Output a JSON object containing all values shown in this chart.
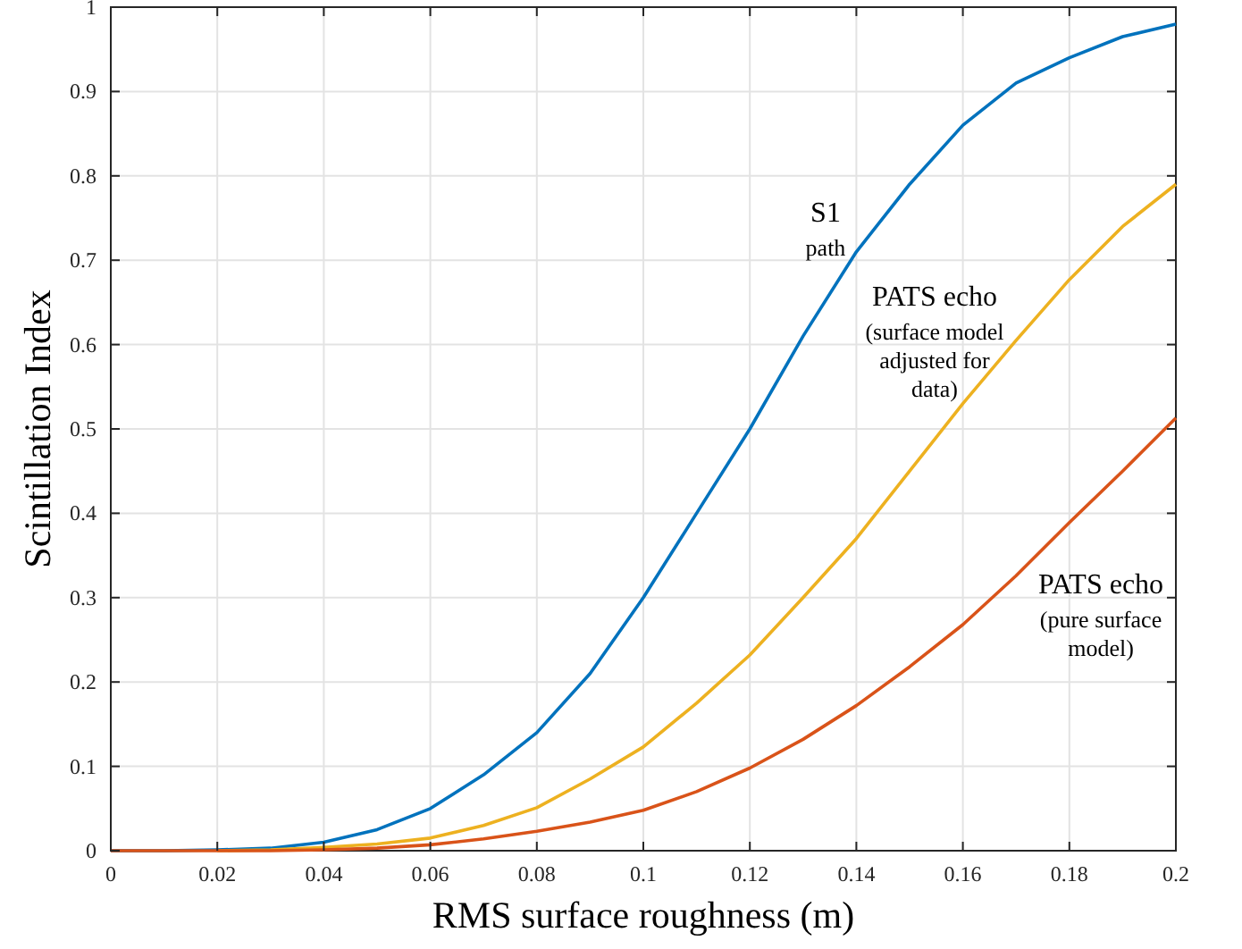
{
  "chart_data": {
    "type": "line",
    "xlabel": "RMS surface roughness (m)",
    "ylabel": "Scintillation Index",
    "x": [
      0,
      0.01,
      0.02,
      0.03,
      0.04,
      0.05,
      0.06,
      0.07,
      0.08,
      0.09,
      0.1,
      0.11,
      0.12,
      0.13,
      0.14,
      0.15,
      0.16,
      0.17,
      0.18,
      0.19,
      0.2
    ],
    "series": [
      {
        "color": "#0072bd",
        "values": [
          0,
          0,
          0.001,
          0.003,
          0.01,
          0.025,
          0.05,
          0.09,
          0.14,
          0.21,
          0.3,
          0.4,
          0.5,
          0.61,
          0.71,
          0.79,
          0.86,
          0.91,
          0.94,
          0.965,
          0.98
        ]
      },
      {
        "color": "#edb120",
        "values": [
          null,
          null,
          0,
          0.001,
          0.004,
          0.008,
          0.015,
          0.03,
          0.051,
          0.085,
          0.123,
          0.175,
          0.232,
          0.3,
          0.37,
          0.45,
          0.53,
          0.605,
          0.677,
          0.74,
          0.79
        ]
      },
      {
        "color": "#d95319",
        "values": [
          0,
          0,
          0,
          0,
          0.001,
          0.003,
          0.007,
          0.014,
          0.023,
          0.034,
          0.048,
          0.07,
          0.098,
          0.132,
          0.172,
          0.218,
          0.268,
          0.326,
          0.389,
          0.45,
          0.513
        ]
      }
    ],
    "xlim": [
      0,
      0.2
    ],
    "ylim": [
      0,
      1
    ],
    "xticks": [
      0,
      0.02,
      0.04,
      0.06,
      0.08,
      0.1,
      0.12,
      0.14,
      0.16,
      0.18,
      0.2
    ],
    "yticks": [
      0,
      0.1,
      0.2,
      0.3,
      0.4,
      0.5,
      0.6,
      0.7,
      0.8,
      0.9,
      1
    ],
    "grid": true,
    "marker": "none",
    "line_style": "solid",
    "annotations": [
      "S1\npath",
      "PATS echo\n(surface model\nadjusted for\ndata)",
      "PATS echo\n(pure surface\nmodel)"
    ]
  }
}
